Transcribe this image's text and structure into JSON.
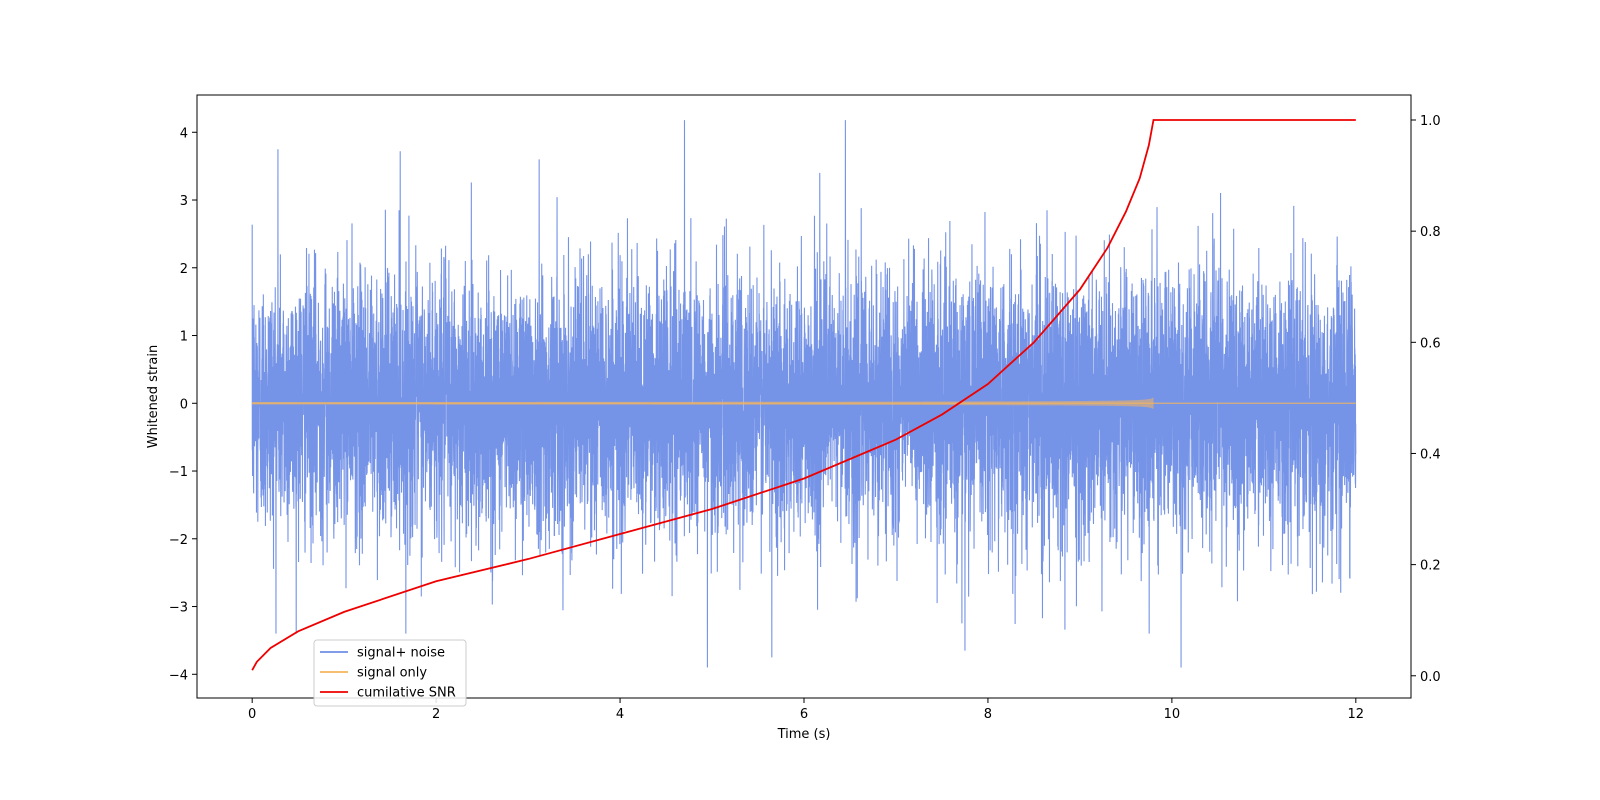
{
  "chart_data": {
    "type": "line",
    "xlabel": "Time (s)",
    "ylabel_left": "Whitened strain",
    "ylabel_right": "",
    "xlim": [
      -0.6,
      12.6
    ],
    "ylim_left": [
      -4.35,
      4.55
    ],
    "ylim_right": [
      -0.04,
      1.045
    ],
    "x_ticks": [
      0,
      2,
      4,
      6,
      8,
      10,
      12
    ],
    "y_ticks_left": [
      -4,
      -3,
      -2,
      -1,
      0,
      1,
      2,
      3,
      4
    ],
    "y_ticks_right": [
      0.0,
      0.2,
      0.4,
      0.6,
      0.8,
      1.0
    ],
    "grid": false,
    "legend_position": "lower-left",
    "series": [
      {
        "name": "signal+ noise",
        "axis": "left",
        "color": "#6f8ee6",
        "description_x_range": [
          0,
          12
        ],
        "envelope_typical": [
          -2.3,
          2.3
        ],
        "notable_peaks": [
          {
            "x": 0.28,
            "y": 3.75
          },
          {
            "x": 1.61,
            "y": 3.72
          },
          {
            "x": 3.12,
            "y": 3.6
          },
          {
            "x": 4.7,
            "y": 4.18
          },
          {
            "x": 6.45,
            "y": 4.18
          },
          {
            "x": 4.95,
            "y": -3.9
          },
          {
            "x": 5.65,
            "y": -3.75
          },
          {
            "x": 7.75,
            "y": -3.65
          },
          {
            "x": 10.1,
            "y": -3.9
          }
        ]
      },
      {
        "name": "signal only",
        "axis": "left",
        "color": "#f5b55c",
        "chirp_end_time": 9.8,
        "peak_amplitude": 0.3
      },
      {
        "name": "cumilative SNR",
        "axis": "right",
        "color": "#ee0000",
        "x": [
          0,
          0.05,
          0.2,
          0.5,
          1.0,
          2.0,
          3.0,
          4.0,
          5.0,
          6.0,
          7.0,
          7.5,
          8.0,
          8.5,
          9.0,
          9.3,
          9.5,
          9.65,
          9.75,
          9.8,
          12.0
        ],
        "y": [
          0.01,
          0.025,
          0.05,
          0.08,
          0.115,
          0.17,
          0.21,
          0.255,
          0.3,
          0.355,
          0.425,
          0.47,
          0.525,
          0.6,
          0.695,
          0.77,
          0.835,
          0.895,
          0.955,
          1.0,
          1.0
        ]
      }
    ]
  }
}
